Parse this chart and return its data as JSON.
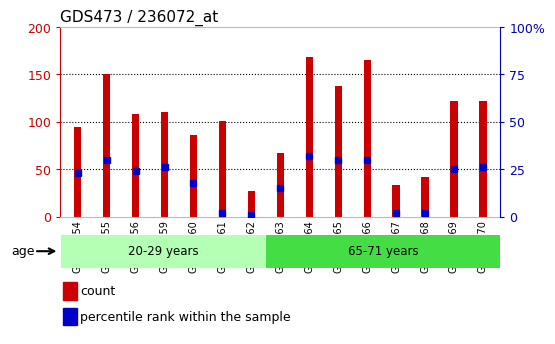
{
  "title": "GDS473 / 236072_at",
  "samples": [
    "GSM10354",
    "GSM10355",
    "GSM10356",
    "GSM10359",
    "GSM10360",
    "GSM10361",
    "GSM10362",
    "GSM10363",
    "GSM10364",
    "GSM10365",
    "GSM10366",
    "GSM10367",
    "GSM10368",
    "GSM10369",
    "GSM10370"
  ],
  "counts": [
    95,
    150,
    108,
    110,
    86,
    101,
    27,
    67,
    168,
    138,
    165,
    33,
    42,
    122,
    122
  ],
  "percentiles": [
    23,
    30,
    24,
    26,
    18,
    2,
    1,
    15,
    32,
    30,
    30,
    2,
    2,
    25,
    26
  ],
  "groups": [
    {
      "label": "20-29 years",
      "start": 0,
      "end": 7,
      "color": "#b3ffb3"
    },
    {
      "label": "65-71 years",
      "start": 7,
      "end": 15,
      "color": "#44dd44"
    }
  ],
  "bar_color": "#cc0000",
  "marker_color": "#0000cc",
  "left_axis_color": "#cc0000",
  "right_axis_color": "#0000bb",
  "ylim_left": [
    0,
    200
  ],
  "ylim_right": [
    0,
    100
  ],
  "yticks_left": [
    0,
    50,
    100,
    150,
    200
  ],
  "yticks_right": [
    0,
    25,
    50,
    75,
    100
  ],
  "ylabel_right_labels": [
    "0",
    "25",
    "50",
    "75",
    "100%"
  ],
  "bg_color": "#ffffff",
  "plot_bg": "#ffffff",
  "age_label": "age",
  "legend_count": "count",
  "legend_percentile": "percentile rank within the sample",
  "title_fontsize": 11,
  "bar_width": 0.25
}
